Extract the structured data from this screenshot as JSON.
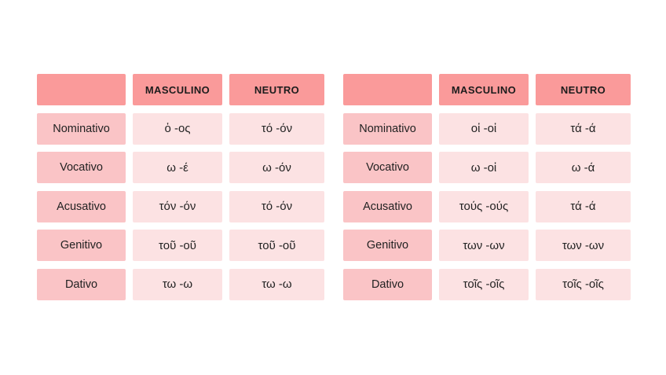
{
  "colors": {
    "header_bg": "#fa9a9a",
    "label_bg": "#fac4c6",
    "cell_bg": "#fce2e3",
    "text": "#222222",
    "page_bg": "#ffffff"
  },
  "tables": [
    {
      "name": "singular",
      "headers": [
        "",
        "MASCULINO",
        "NEUTRO"
      ],
      "rows": [
        {
          "label": "Nominativo",
          "masculino": "ὁ -ος",
          "neutro": "τό -όν"
        },
        {
          "label": "Vocativo",
          "masculino": "ω -έ",
          "neutro": "ω -όν"
        },
        {
          "label": "Acusativo",
          "masculino": "τόν -όν",
          "neutro": "τό -όν"
        },
        {
          "label": "Genitivo",
          "masculino": "τοῦ -οῦ",
          "neutro": "τοῦ -οῦ"
        },
        {
          "label": "Dativo",
          "masculino": "τω -ω",
          "neutro": "τω -ω"
        }
      ]
    },
    {
      "name": "plural",
      "headers": [
        "",
        "MASCULINO",
        "NEUTRO"
      ],
      "rows": [
        {
          "label": "Nominativo",
          "masculino": "οἱ -οἱ",
          "neutro": "τά -ά"
        },
        {
          "label": "Vocativo",
          "masculino": "ω -οἱ",
          "neutro": "ω -ά"
        },
        {
          "label": "Acusativo",
          "masculino": "τούς -ούς",
          "neutro": "τά -ά"
        },
        {
          "label": "Genitivo",
          "masculino": "των -ων",
          "neutro": "των -ων"
        },
        {
          "label": "Dativo",
          "masculino": "τοῖς -οῖς",
          "neutro": "τοῖς -οῖς"
        }
      ]
    }
  ]
}
